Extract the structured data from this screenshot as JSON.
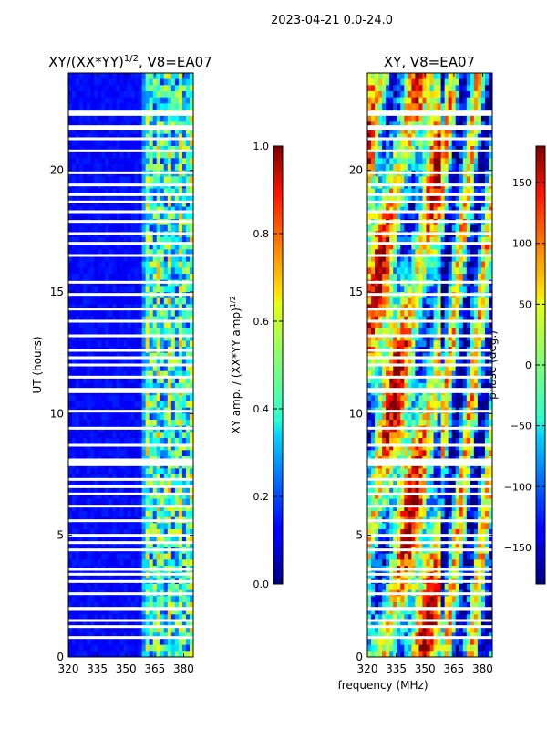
{
  "suptitle": "2023-04-21 0.0-24.0",
  "shared": {
    "xlabel": "frequency (MHz)",
    "xlim": [
      320,
      385
    ],
    "xticks": [
      "320",
      "335",
      "350",
      "365",
      "380"
    ],
    "ylim": [
      0,
      24
    ],
    "yticks": [
      "0",
      "5",
      "10",
      "15",
      "20"
    ]
  },
  "chart_data": [
    {
      "type": "heatmap",
      "title_main": "XY/(XX*YY)",
      "title_sup": "1/2",
      "title_rest": ", V8=EA07",
      "ylabel": "UT (hours)",
      "colorbar": {
        "label_main": "XY amp. / (XX*YY amp)",
        "label_sup": "1/2",
        "range": [
          0,
          1
        ],
        "ticks": [
          "0.0",
          "0.2",
          "0.4",
          "0.6",
          "0.8",
          "1.0"
        ]
      }
    },
    {
      "type": "heatmap",
      "title_main": "XY, V8=EA07",
      "ylabel": "",
      "colorbar": {
        "label_main": "phase (deg.)",
        "range": [
          -180,
          180
        ],
        "ticks": [
          "-150",
          "-100",
          "-50",
          "0",
          "50",
          "100",
          "150"
        ]
      }
    }
  ],
  "flagged_hours": [
    0.8,
    1.25,
    1.5,
    1.95,
    2.0,
    2.6,
    3.1,
    3.4,
    3.6,
    4.4,
    4.7,
    5.0,
    5.6,
    6.2,
    6.7,
    7.0,
    7.3,
    7.9,
    8.0,
    8.1,
    8.7,
    9.4,
    10.1,
    10.9,
    11.0,
    11.5,
    12.0,
    12.3,
    12.6,
    13.2,
    13.8,
    14.3,
    14.9,
    15.4,
    16.5,
    17.0,
    17.4,
    17.9,
    18.3,
    18.7,
    19.0,
    19.4,
    19.9,
    20.8,
    21.3,
    21.7,
    21.8,
    22.3,
    22.4
  ]
}
